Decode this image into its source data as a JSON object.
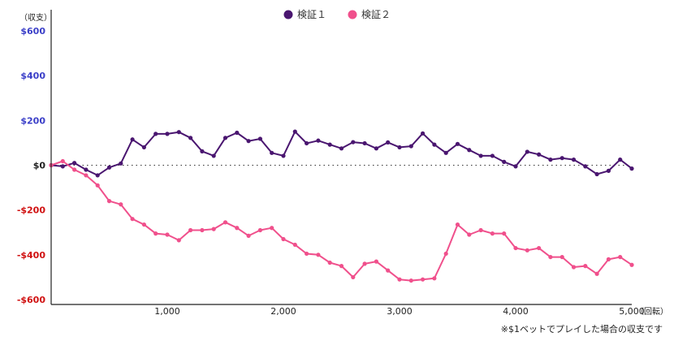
{
  "chart_data": {
    "type": "line",
    "ylabel": "（収支）",
    "xunit": "（回転）",
    "note": "※$1ベットでプレイした場合の収支です",
    "xlim": [
      0,
      5000
    ],
    "ylim": [
      -600,
      600
    ],
    "yticks": [
      600,
      400,
      200,
      0,
      -200,
      -400,
      -600
    ],
    "ytick_labels": [
      "$600",
      "$400",
      "$200",
      "$0",
      "-$200",
      "-$400",
      "-$600"
    ],
    "xticks": [
      1000,
      2000,
      3000,
      4000,
      5000
    ],
    "xtick_labels": [
      "1,000",
      "2,000",
      "3,000",
      "4,000",
      "5,000"
    ],
    "zero_line": "dotted",
    "legend_position": "top-center",
    "colors": {
      "positive_tick": "#3b3fc8",
      "zero_tick": "#222222",
      "negative_tick": "#d01010",
      "axis": "#222222"
    },
    "series": [
      {
        "name": "検証１",
        "color": "#4a1670",
        "x": [
          0,
          100,
          200,
          300,
          400,
          500,
          600,
          700,
          800,
          900,
          1000,
          1100,
          1200,
          1300,
          1400,
          1500,
          1600,
          1700,
          1800,
          1900,
          2000,
          2100,
          2200,
          2300,
          2400,
          2500,
          2600,
          2700,
          2800,
          2900,
          3000,
          3100,
          3200,
          3300,
          3400,
          3500,
          3600,
          3700,
          3800,
          3900,
          4000,
          4100,
          4200,
          4300,
          4400,
          4500,
          4600,
          4700,
          4800,
          4900,
          5000
        ],
        "values": [
          0,
          -5,
          10,
          -20,
          -45,
          -10,
          8,
          115,
          80,
          140,
          140,
          148,
          122,
          62,
          42,
          122,
          145,
          108,
          118,
          55,
          42,
          150,
          98,
          110,
          92,
          75,
          103,
          98,
          75,
          102,
          80,
          85,
          142,
          92,
          55,
          95,
          68,
          42,
          42,
          15,
          -5,
          60,
          48,
          25,
          32,
          25,
          -5,
          -40,
          -25,
          25,
          -15
        ]
      },
      {
        "name": "検証２",
        "color": "#f0508c",
        "x": [
          0,
          100,
          200,
          300,
          400,
          500,
          600,
          700,
          800,
          900,
          1000,
          1100,
          1200,
          1300,
          1400,
          1500,
          1600,
          1700,
          1800,
          1900,
          2000,
          2100,
          2200,
          2300,
          2400,
          2500,
          2600,
          2700,
          2800,
          2900,
          3000,
          3100,
          3200,
          3300,
          3400,
          3500,
          3600,
          3700,
          3800,
          3900,
          4000,
          4100,
          4200,
          4300,
          4400,
          4500,
          4600,
          4700,
          4800,
          4900,
          5000
        ],
        "values": [
          0,
          18,
          -20,
          -45,
          -90,
          -160,
          -175,
          -240,
          -265,
          -305,
          -310,
          -335,
          -290,
          -290,
          -285,
          -255,
          -280,
          -315,
          -290,
          -280,
          -330,
          -355,
          -395,
          -400,
          -435,
          -450,
          -500,
          -440,
          -430,
          -470,
          -510,
          -515,
          -510,
          -505,
          -395,
          -265,
          -310,
          -290,
          -305,
          -305,
          -370,
          -380,
          -370,
          -410,
          -410,
          -455,
          -450,
          -485,
          -420,
          -410,
          -445
        ]
      }
    ]
  }
}
